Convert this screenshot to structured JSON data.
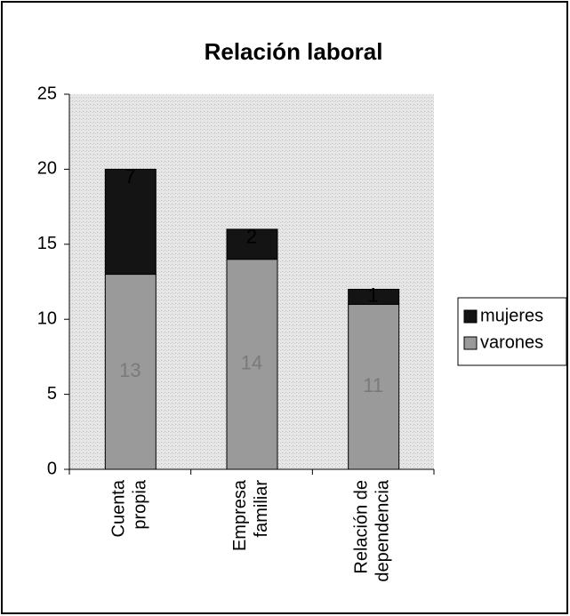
{
  "chart_data": {
    "type": "stacked_bar",
    "title": "Relación laboral",
    "categories": [
      "Cuenta propia",
      "Empresa familiar",
      "Relación de dependencia"
    ],
    "series": [
      {
        "name": "varones",
        "color": "#9a9a9a",
        "values": [
          13,
          14,
          11
        ]
      },
      {
        "name": "mujeres",
        "color": "#141414",
        "values": [
          7,
          2,
          1
        ]
      }
    ],
    "ylim": [
      0,
      25
    ],
    "yticks": [
      0,
      5,
      10,
      15,
      20,
      25
    ],
    "legend": "right"
  }
}
